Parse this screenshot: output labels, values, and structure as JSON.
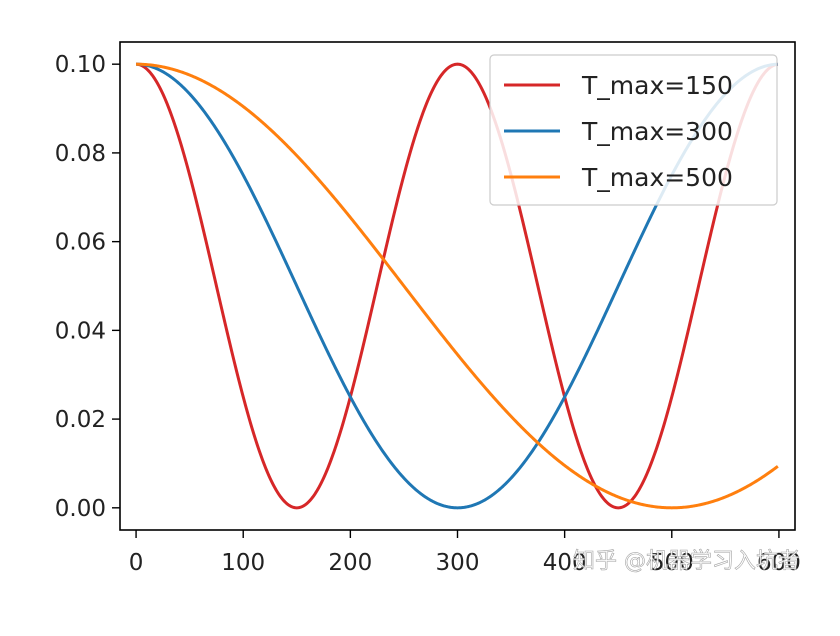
{
  "chart_data": {
    "type": "line",
    "title": "",
    "xlabel": "",
    "ylabel": "",
    "xlim": [
      -15,
      615
    ],
    "ylim": [
      -0.005,
      0.105
    ],
    "xticks": [
      0,
      100,
      200,
      300,
      400,
      500,
      600
    ],
    "xtick_labels": [
      "0",
      "100",
      "200",
      "300",
      "400",
      "500",
      "600"
    ],
    "yticks": [
      0.0,
      0.02,
      0.04,
      0.06,
      0.08,
      0.1
    ],
    "ytick_labels": [
      "0.00",
      "0.02",
      "0.04",
      "0.06",
      "0.08",
      "0.10"
    ],
    "grid": false,
    "legend_position": "top-right",
    "eta_max": 0.1,
    "eta_min": 0.0,
    "x_start": 0,
    "x_end": 599,
    "series": [
      {
        "name": "T_max=150",
        "T_max": 150,
        "color": "#d62728"
      },
      {
        "name": "T_max=300",
        "T_max": 300,
        "color": "#1f77b4"
      },
      {
        "name": "T_max=500",
        "T_max": 500,
        "color": "#ff7f0e"
      }
    ],
    "watermark": "知乎 @机器学习入坑者"
  }
}
